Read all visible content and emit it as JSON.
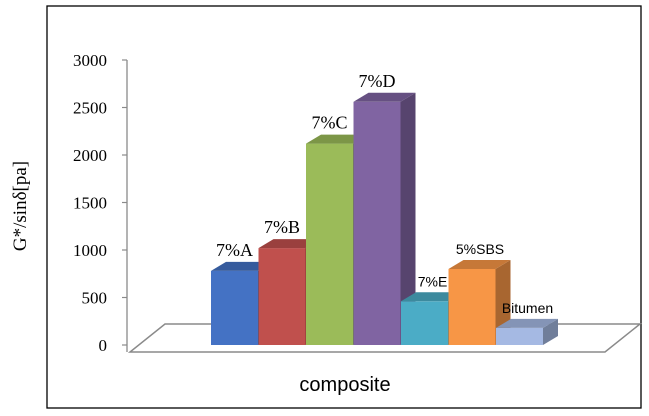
{
  "chart_data": {
    "type": "bar",
    "style": "3d-clustered-column",
    "categories": [
      "7%A",
      "7%B",
      "7%C",
      "7%D",
      "7%E",
      "5%SBS",
      "Bitumen"
    ],
    "values": [
      780,
      1020,
      2120,
      2560,
      460,
      800,
      180
    ],
    "colors": [
      "#4472c4",
      "#c0504d",
      "#9bbb59",
      "#8064a2",
      "#4bacc6",
      "#f79646",
      "#a5b9e3"
    ],
    "label_fonts": [
      "serif",
      "serif",
      "serif",
      "serif",
      "sans",
      "sans",
      "sans"
    ],
    "xlabel": "composite",
    "ylabel": "G*/sinδ[pa]",
    "ylim": [
      0,
      3000
    ],
    "yticks": [
      "0",
      "500",
      "1000",
      "1500",
      "2000",
      "2500",
      "3000"
    ],
    "grid": false,
    "legend": "none"
  }
}
